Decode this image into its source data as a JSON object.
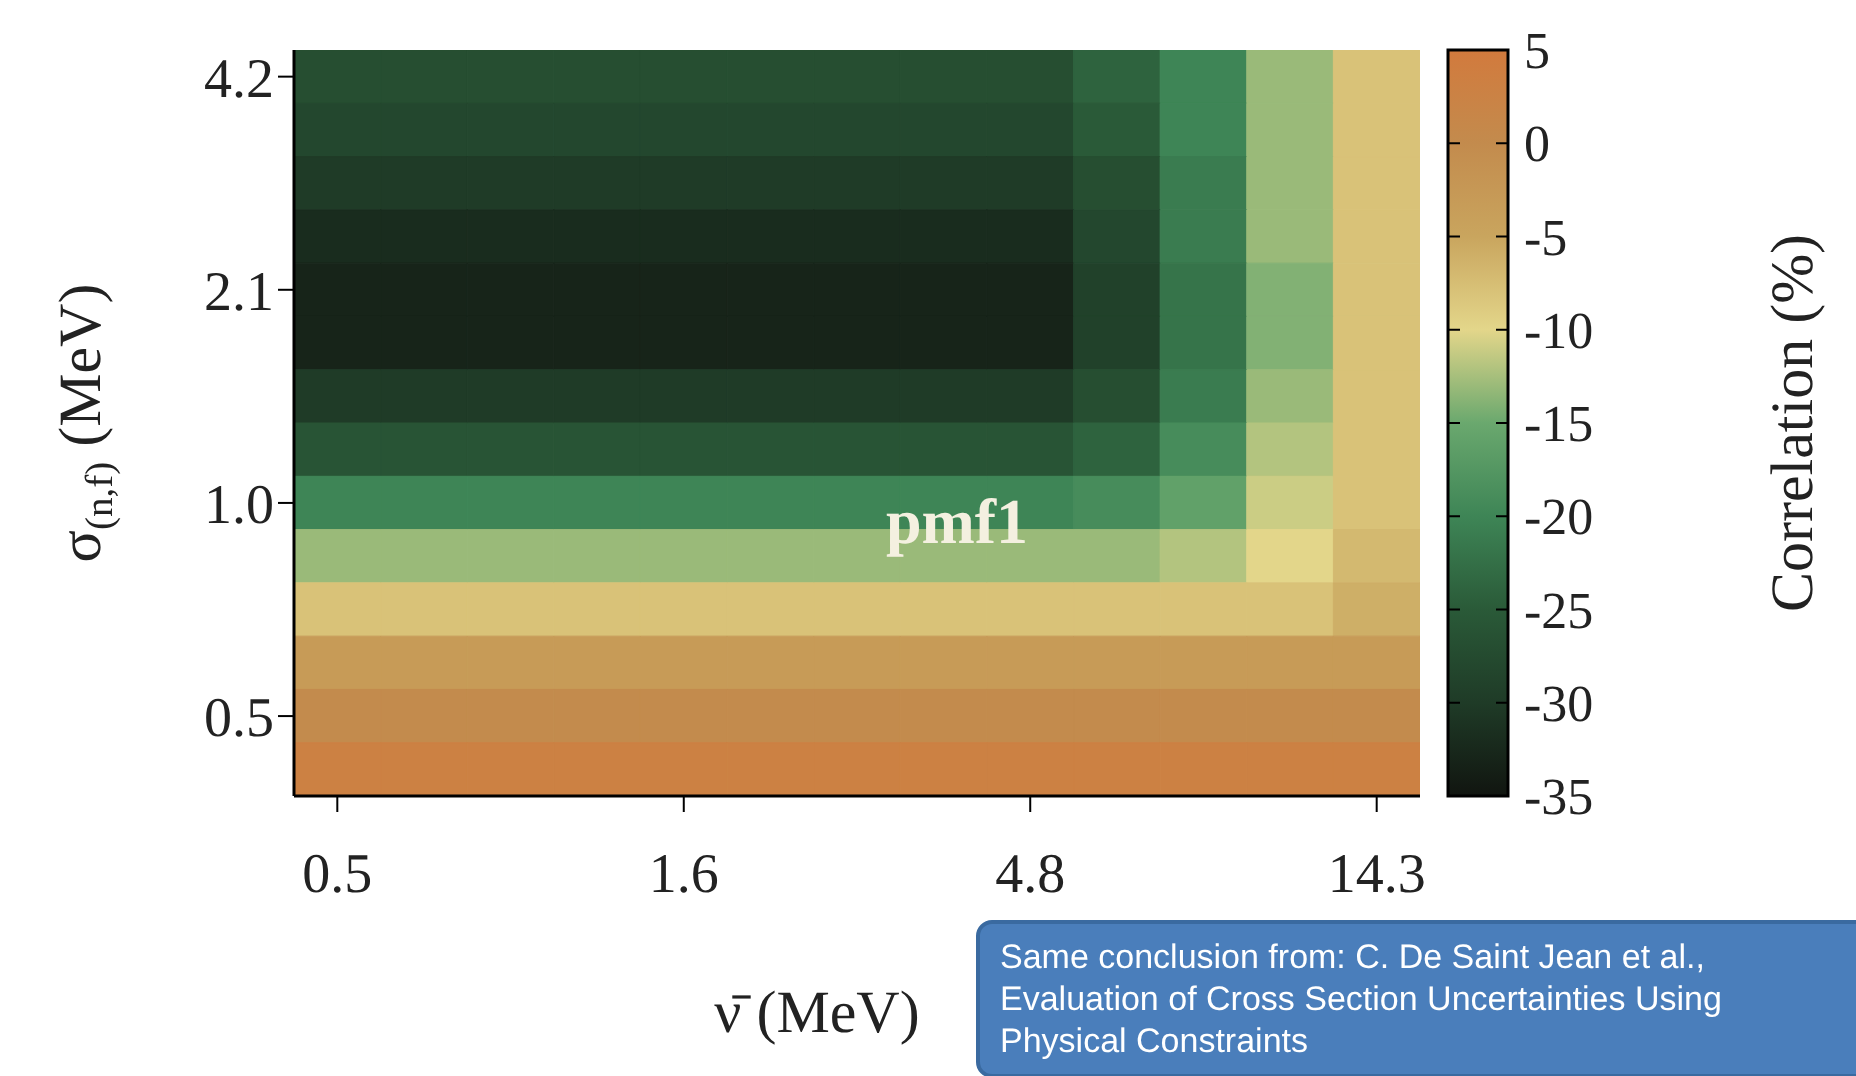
{
  "chart_data": {
    "type": "heatmap",
    "xlabel": "ν̄ (MeV)",
    "ylabel": "σ$_{(n,f)}$ (MeV)",
    "clabel": "Correlation (%)",
    "annotations": [
      "pmf1",
      "Same conclusion from: C. De Saint Jean et al., Evaluation of Cross Section Uncertainties Using Physical Constraints"
    ],
    "clim": [
      -35,
      5
    ],
    "cticks": [
      -35,
      -30,
      -25,
      -20,
      -15,
      -10,
      -5,
      0,
      5
    ],
    "colors": [
      "#111510",
      "#1f3b27",
      "#2a5a38",
      "#3e8556",
      "#6aa86e",
      "#e3d68a",
      "#c9a55e",
      "#c38b4d",
      "#d27a3d"
    ],
    "categories": [
      "0.5",
      null,
      null,
      null,
      "1.6",
      null,
      null,
      null,
      "4.8",
      null,
      null,
      null,
      "14.3"
    ],
    "y_categories": [
      "4.2",
      null,
      null,
      null,
      "2.1",
      null,
      null,
      null,
      "1.0",
      null,
      null,
      null,
      "0.5",
      null
    ],
    "cells": [
      [
        -27,
        -27,
        -27,
        -27,
        -27,
        -27,
        -27,
        -27,
        -27,
        -24,
        -20,
        -13,
        -8
      ],
      [
        -28,
        -28,
        -28,
        -28,
        -28,
        -28,
        -28,
        -28,
        -28,
        -25,
        -20,
        -13,
        -8
      ],
      [
        -30,
        -30,
        -30,
        -30,
        -30,
        -30,
        -30,
        -30,
        -30,
        -27,
        -21,
        -13,
        -8
      ],
      [
        -32,
        -32,
        -32,
        -32,
        -32,
        -32,
        -32,
        -32,
        -32,
        -28,
        -21,
        -13,
        -8
      ],
      [
        -33,
        -33,
        -33,
        -33,
        -33,
        -33,
        -33,
        -33,
        -33,
        -29,
        -22,
        -14,
        -8
      ],
      [
        -33,
        -33,
        -33,
        -33,
        -33,
        -33,
        -33,
        -33,
        -33,
        -29,
        -22,
        -14,
        -8
      ],
      [
        -30,
        -30,
        -30,
        -30,
        -30,
        -30,
        -30,
        -30,
        -30,
        -27,
        -21,
        -13,
        -8
      ],
      [
        -26,
        -26,
        -26,
        -26,
        -26,
        -26,
        -26,
        -26,
        -26,
        -24,
        -19,
        -12,
        -8
      ],
      [
        -20,
        -20,
        -20,
        -20,
        -20,
        -20,
        -20,
        -20,
        -20,
        -19,
        -16,
        -11,
        -8
      ],
      [
        -13,
        -13,
        -13,
        -13,
        -13,
        -13,
        -13,
        -13,
        -13,
        -13,
        -12,
        -10,
        -7
      ],
      [
        -8,
        -8,
        -8,
        -8,
        -8,
        -8,
        -8,
        -8,
        -8,
        -8,
        -8,
        -8,
        -6
      ],
      [
        -3,
        -3,
        -3,
        -3,
        -3,
        -3,
        -3,
        -3,
        -3,
        -3,
        -3,
        -3,
        -3
      ],
      [
        0,
        0,
        0,
        0,
        0,
        0,
        0,
        0,
        0,
        0,
        0,
        0,
        0
      ],
      [
        3,
        3,
        3,
        3,
        3,
        3,
        3,
        3,
        3,
        3,
        3,
        3,
        3
      ]
    ]
  }
}
